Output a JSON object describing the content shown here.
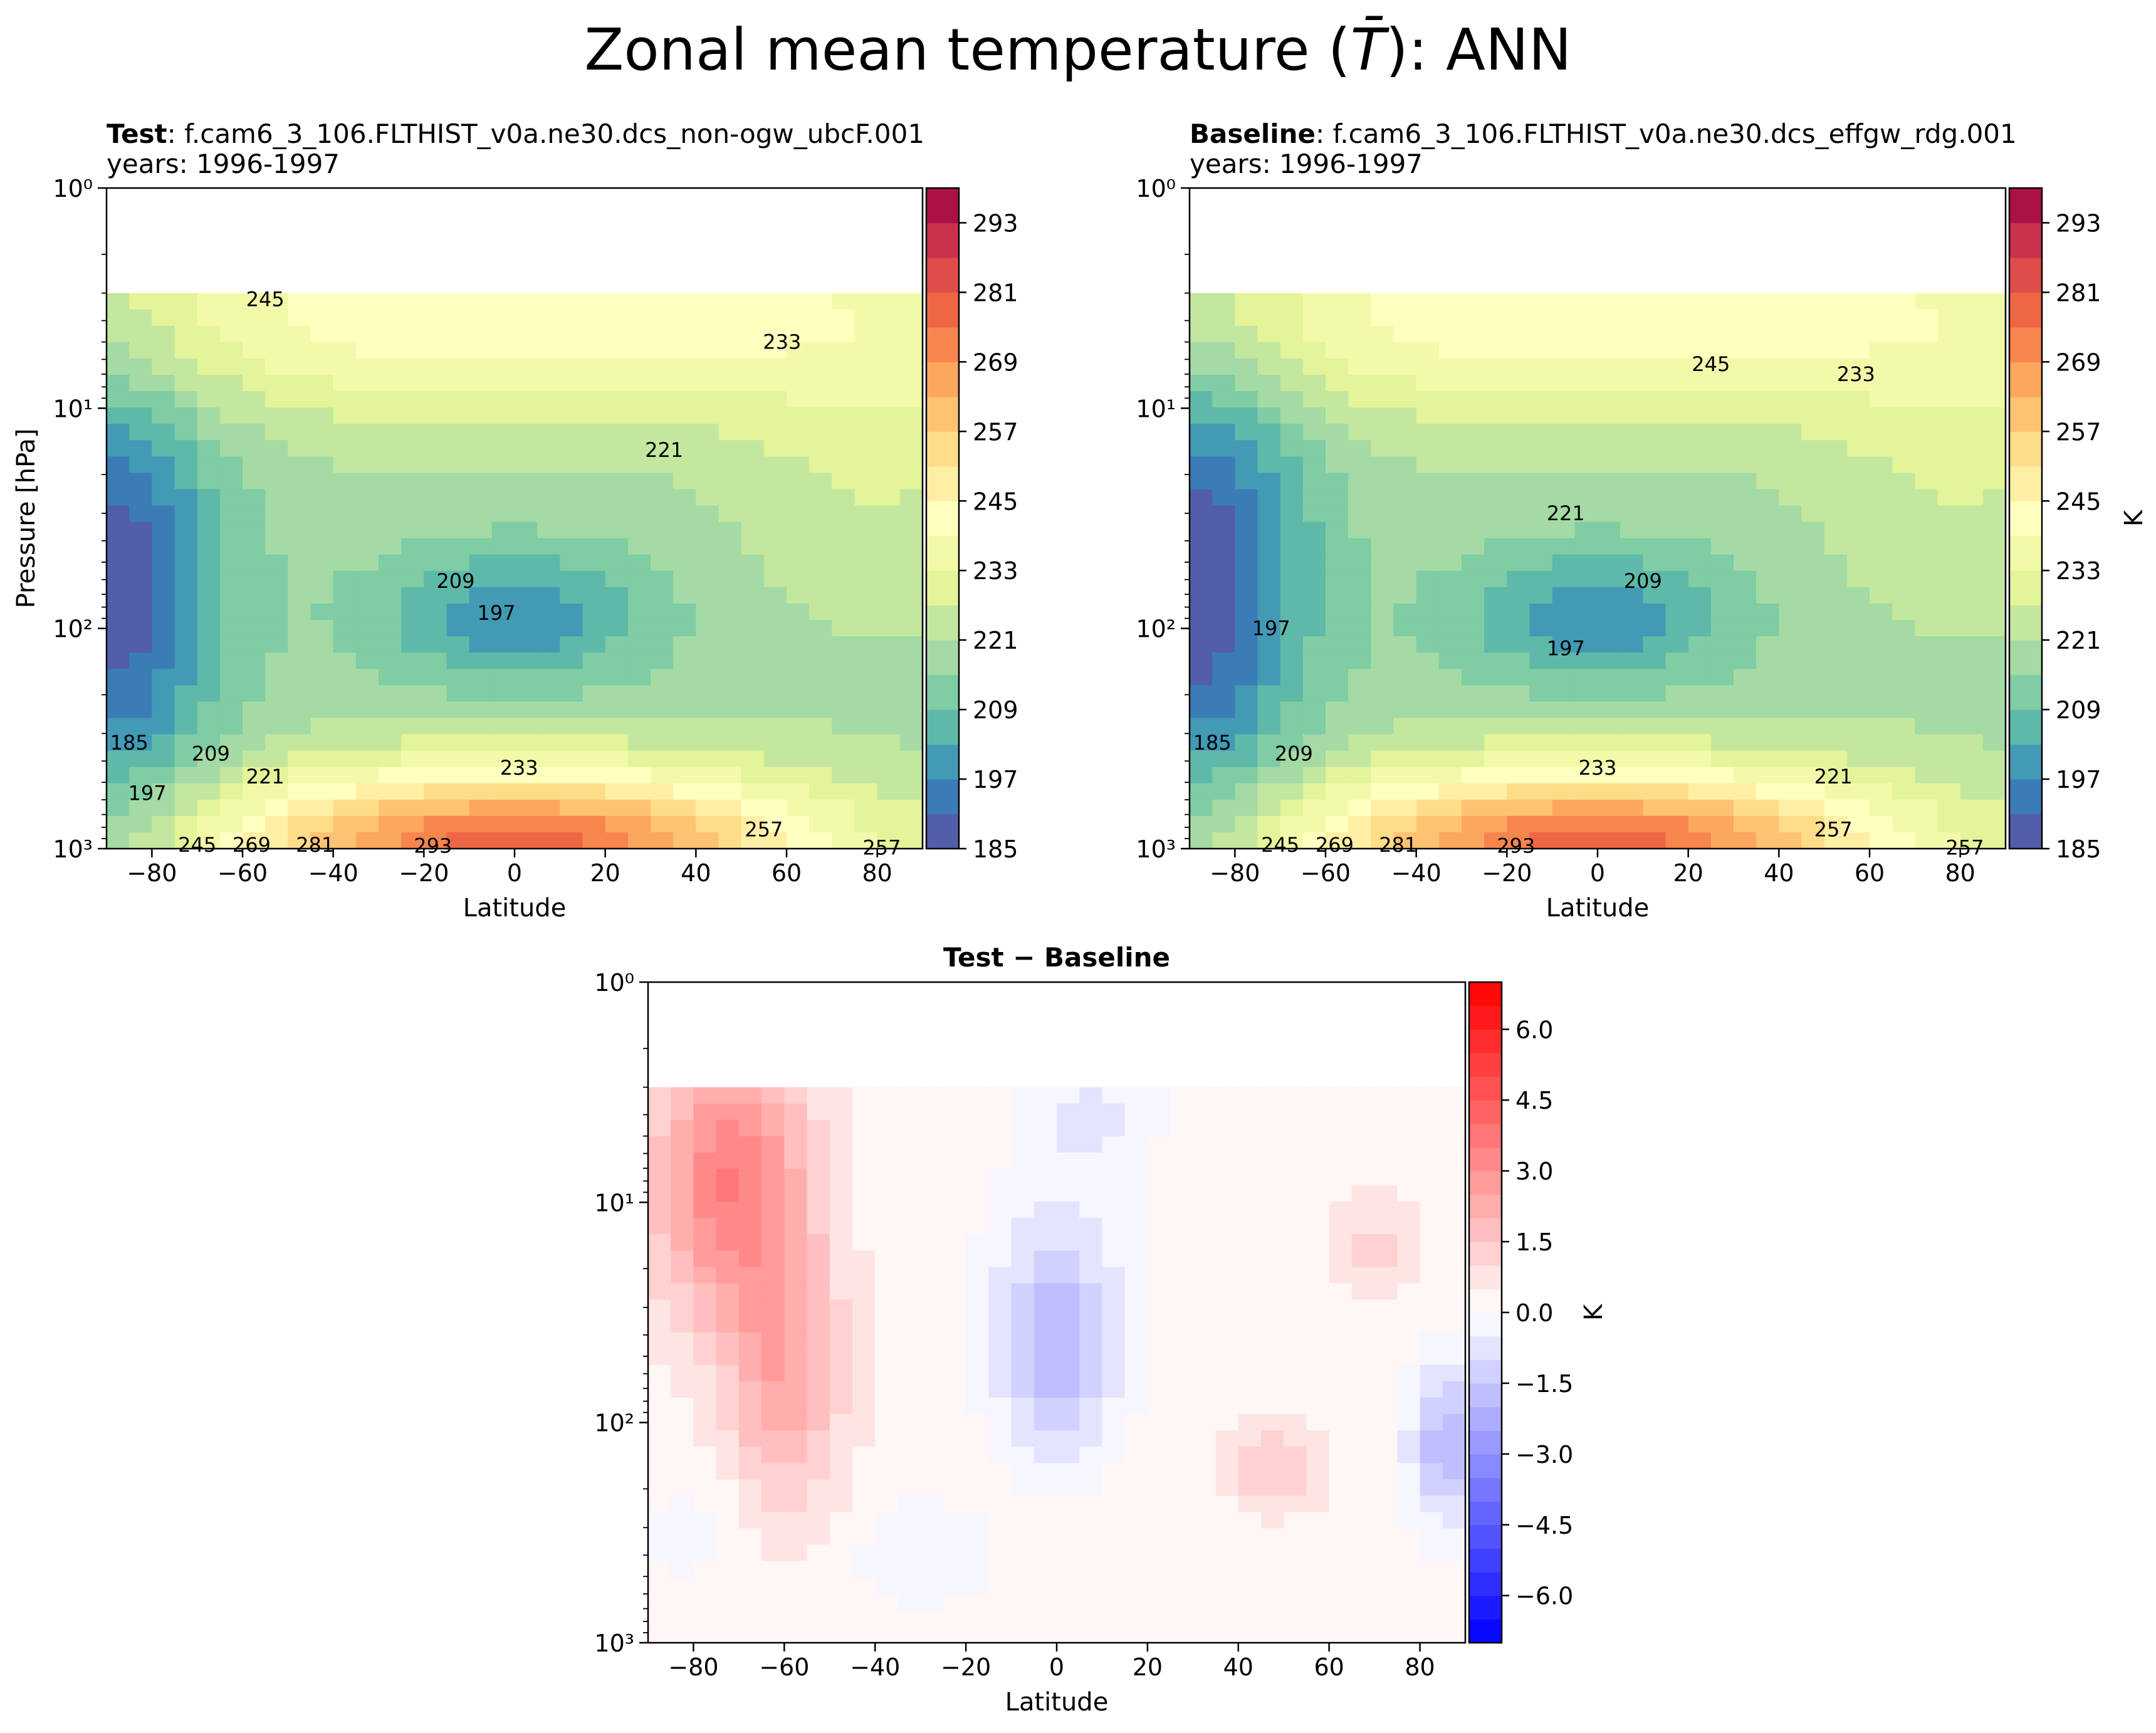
{
  "figure": {
    "title": "Zonal mean temperature (",
    "title_sym": "T̄",
    "title_end": "): ANN"
  },
  "panels": {
    "test": {
      "label": "Test",
      "case": ": f.cam6_3_106.FLTHIST_v0a.ne30.dcs_non-ogw_ubcF.001",
      "years": "years: 1996-1997"
    },
    "baseline": {
      "label": "Baseline",
      "case": ": f.cam6_3_106.FLTHIST_v0a.ne30.dcs_effgw_rdg.001",
      "years": "years: 1996-1997"
    },
    "diff": {
      "title": "Test − Baseline"
    }
  },
  "chart_data": [
    {
      "type": "contourf",
      "name": "test",
      "title": "Test : f.cam6_3_106.FLTHIST_v0a.ne30.dcs_non-ogw_ubcF.001 years: 1996-1997",
      "xlabel": "Latitude",
      "ylabel": "Pressure [hPa]",
      "xlim": [
        -90,
        90
      ],
      "ylim": [
        1000,
        1
      ],
      "yscale": "log",
      "xticks": [
        "−80",
        "−60",
        "−40",
        "−20",
        "0",
        "20",
        "40",
        "60",
        "80"
      ],
      "yticks": [
        "10⁰",
        "10¹",
        "10²",
        "10³"
      ],
      "colorbar": {
        "label": "",
        "ticks": [
          "185",
          "197",
          "209",
          "221",
          "233",
          "245",
          "257",
          "269",
          "281",
          "293"
        ],
        "range": [
          185,
          299
        ]
      },
      "contour_labels": [
        {
          "text": "245",
          "lat": -55,
          "p": 3.2
        },
        {
          "text": "233",
          "lat": 59,
          "p": 5.0
        },
        {
          "text": "221",
          "lat": 33,
          "p": 15.5
        },
        {
          "text": "209",
          "lat": -13,
          "p": 61
        },
        {
          "text": "197",
          "lat": -4,
          "p": 85
        },
        {
          "text": "185",
          "lat": -85,
          "p": 330
        },
        {
          "text": "209",
          "lat": -67,
          "p": 370
        },
        {
          "text": "197",
          "lat": -81,
          "p": 560
        },
        {
          "text": "221",
          "lat": -55,
          "p": 470
        },
        {
          "text": "233",
          "lat": 1,
          "p": 430
        },
        {
          "text": "257",
          "lat": 55,
          "p": 820
        },
        {
          "text": "245",
          "lat": -70,
          "p": 960
        },
        {
          "text": "269",
          "lat": -58,
          "p": 960
        },
        {
          "text": "281",
          "lat": -44,
          "p": 960
        },
        {
          "text": "293",
          "lat": -18,
          "p": 970
        },
        {
          "text": "257",
          "lat": 81,
          "p": 990
        }
      ]
    },
    {
      "type": "contourf",
      "name": "baseline",
      "title": "Baseline : f.cam6_3_106.FLTHIST_v0a.ne30.dcs_effgw_rdg.001 years: 1996-1997",
      "xlabel": "Latitude",
      "ylabel": "",
      "xlim": [
        -90,
        90
      ],
      "ylim": [
        1000,
        1
      ],
      "yscale": "log",
      "xticks": [
        "−80",
        "−60",
        "−40",
        "−20",
        "0",
        "20",
        "40",
        "60",
        "80"
      ],
      "yticks": [
        "10⁰",
        "10¹",
        "10²",
        "10³"
      ],
      "colorbar": {
        "label": "K",
        "ticks": [
          "185",
          "197",
          "209",
          "221",
          "233",
          "245",
          "257",
          "269",
          "281",
          "293"
        ],
        "range": [
          185,
          299
        ]
      },
      "contour_labels": [
        {
          "text": "245",
          "lat": 25,
          "p": 6.3
        },
        {
          "text": "233",
          "lat": 57,
          "p": 7.0
        },
        {
          "text": "221",
          "lat": -7,
          "p": 30
        },
        {
          "text": "209",
          "lat": 10,
          "p": 61
        },
        {
          "text": "197",
          "lat": -7,
          "p": 123
        },
        {
          "text": "197",
          "lat": -72,
          "p": 100
        },
        {
          "text": "185",
          "lat": -85,
          "p": 330
        },
        {
          "text": "209",
          "lat": -67,
          "p": 370
        },
        {
          "text": "233",
          "lat": 0,
          "p": 430
        },
        {
          "text": "221",
          "lat": 52,
          "p": 470
        },
        {
          "text": "257",
          "lat": 52,
          "p": 820
        },
        {
          "text": "245",
          "lat": -70,
          "p": 960
        },
        {
          "text": "269",
          "lat": -58,
          "p": 960
        },
        {
          "text": "281",
          "lat": -44,
          "p": 960
        },
        {
          "text": "293",
          "lat": -18,
          "p": 970
        },
        {
          "text": "257",
          "lat": 81,
          "p": 990
        }
      ]
    },
    {
      "type": "contourf",
      "name": "difference",
      "title": "Test − Baseline",
      "xlabel": "Latitude",
      "ylabel": "",
      "xlim": [
        -90,
        90
      ],
      "ylim": [
        1000,
        1
      ],
      "yscale": "log",
      "xticks": [
        "−80",
        "−60",
        "−40",
        "−20",
        "0",
        "20",
        "40",
        "60",
        "80"
      ],
      "yticks": [
        "10⁰",
        "10¹",
        "10²",
        "10³"
      ],
      "colorbar": {
        "label": "K",
        "ticks": [
          "6.0",
          "4.5",
          "3.0",
          "1.5",
          "0.0",
          "−1.5",
          "−3.0",
          "−4.5",
          "−6.0"
        ],
        "range": [
          -7,
          7
        ]
      }
    }
  ]
}
